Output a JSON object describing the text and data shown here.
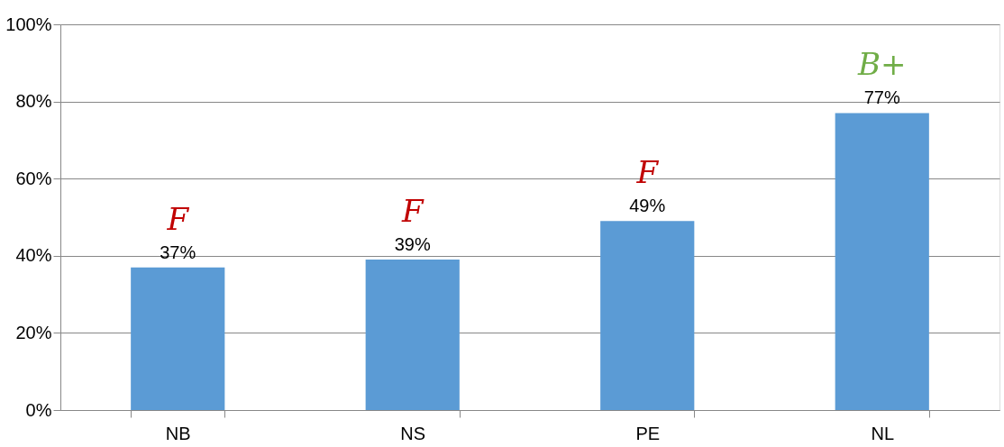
{
  "chart_data": {
    "type": "bar",
    "categories": [
      "NB",
      "NS",
      "PE",
      "NL"
    ],
    "values": [
      37,
      39,
      49,
      77
    ],
    "color": "#5b9bd5",
    "value_labels": [
      "37%",
      "39%",
      "49%",
      "77%"
    ],
    "ylim": [
      0,
      100
    ],
    "yticks": [
      {
        "value": 0,
        "label": "0%"
      },
      {
        "value": 20,
        "label": "20%"
      },
      {
        "value": 40,
        "label": "40%"
      },
      {
        "value": 60,
        "label": "60%"
      },
      {
        "value": 80,
        "label": "80%"
      },
      {
        "value": 100,
        "label": "100%"
      }
    ],
    "grid": "y",
    "annotations": [
      {
        "text": "F",
        "x": "NB",
        "y": 37
      },
      {
        "text": "F",
        "x": "NS",
        "y": 39
      },
      {
        "text": "F",
        "x": "PE",
        "y": 49
      },
      {
        "text": "B+",
        "x": "NL",
        "y": 77
      }
    ]
  }
}
